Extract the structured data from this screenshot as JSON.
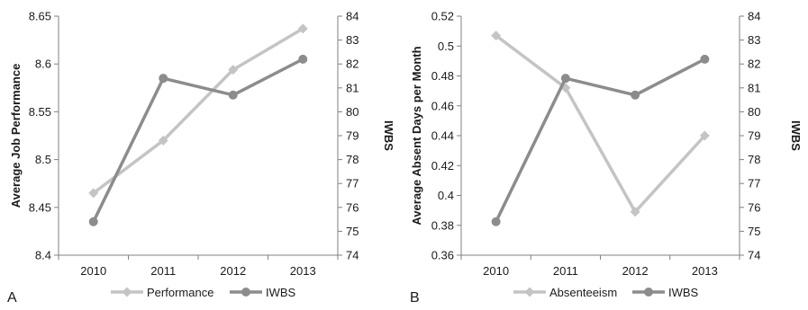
{
  "chart_data": [
    {
      "type": "line",
      "panel_label": "A",
      "categories": [
        "2010",
        "2011",
        "2012",
        "2013"
      ],
      "ylabel": "Average Job Performance",
      "y2label": "IWBS",
      "ylim": [
        8.4,
        8.65
      ],
      "yticks": [
        "8.4",
        "8.45",
        "8.5",
        "8.55",
        "8.6",
        "8.65"
      ],
      "y2lim": [
        74,
        84
      ],
      "y2ticks": [
        "74",
        "75",
        "76",
        "77",
        "78",
        "79",
        "80",
        "81",
        "82",
        "83",
        "84"
      ],
      "grid": false,
      "legend_position": "bottom",
      "series": [
        {
          "name": "Performance",
          "axis": "left",
          "values": [
            8.465,
            8.52,
            8.594,
            8.637
          ],
          "color": "#c4c4c4",
          "marker": "diamond"
        },
        {
          "name": "IWBS",
          "axis": "right",
          "values": [
            75.4,
            81.4,
            80.7,
            82.2
          ],
          "color": "#8c8c8c",
          "marker": "circle"
        }
      ]
    },
    {
      "type": "line",
      "panel_label": "B",
      "categories": [
        "2010",
        "2011",
        "2012",
        "2013"
      ],
      "ylabel": "Average Absent Days per Month",
      "y2label": "IWBS",
      "ylim": [
        0.36,
        0.52
      ],
      "yticks": [
        "0.36",
        "0.38",
        "0.4",
        "0.42",
        "0.44",
        "0.46",
        "0.48",
        "0.5",
        "0.52"
      ],
      "y2lim": [
        74,
        84
      ],
      "y2ticks": [
        "74",
        "75",
        "76",
        "77",
        "78",
        "79",
        "80",
        "81",
        "82",
        "83",
        "84"
      ],
      "grid": false,
      "legend_position": "bottom",
      "series": [
        {
          "name": "Absenteeism",
          "axis": "left",
          "values": [
            0.507,
            0.472,
            0.389,
            0.44
          ],
          "color": "#c4c4c4",
          "marker": "diamond"
        },
        {
          "name": "IWBS",
          "axis": "right",
          "values": [
            75.4,
            81.4,
            80.7,
            82.2
          ],
          "color": "#8c8c8c",
          "marker": "circle"
        }
      ]
    }
  ]
}
